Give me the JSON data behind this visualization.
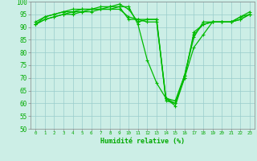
{
  "x": [
    0,
    1,
    2,
    3,
    4,
    5,
    6,
    7,
    8,
    9,
    10,
    11,
    12,
    13,
    14,
    15,
    16,
    17,
    18,
    19,
    20,
    21,
    22,
    23
  ],
  "lines": [
    [
      91,
      93,
      94,
      95,
      96,
      96,
      97,
      97,
      97,
      98,
      98,
      91,
      77,
      68,
      62,
      59,
      70,
      82,
      87,
      92,
      92,
      92,
      93,
      95
    ],
    [
      92,
      94,
      95,
      96,
      97,
      97,
      97,
      97,
      98,
      99,
      97,
      92,
      93,
      93,
      62,
      60,
      71,
      87,
      91,
      92,
      92,
      92,
      94,
      96
    ],
    [
      91,
      94,
      95,
      96,
      96,
      97,
      97,
      98,
      98,
      98,
      93,
      93,
      93,
      93,
      61,
      60,
      70,
      88,
      91,
      92,
      92,
      92,
      94,
      95
    ],
    [
      91,
      93,
      94,
      95,
      95,
      96,
      96,
      97,
      97,
      97,
      94,
      93,
      92,
      92,
      62,
      61,
      71,
      86,
      92,
      92,
      92,
      92,
      93,
      95
    ]
  ],
  "line_color": "#00bb00",
  "marker": "+",
  "bg_color": "#cceee6",
  "grid_color": "#99cccc",
  "xlabel": "Humidité relative (%)",
  "tick_color": "#00aa00",
  "ylim": [
    50,
    100
  ],
  "xlim_min": -0.5,
  "xlim_max": 23.5,
  "yticks": [
    50,
    55,
    60,
    65,
    70,
    75,
    80,
    85,
    90,
    95,
    100
  ],
  "xticks": [
    0,
    1,
    2,
    3,
    4,
    5,
    6,
    7,
    8,
    9,
    10,
    11,
    12,
    13,
    14,
    15,
    16,
    17,
    18,
    19,
    20,
    21,
    22,
    23
  ],
  "lw": 0.9,
  "markersize": 3.0
}
